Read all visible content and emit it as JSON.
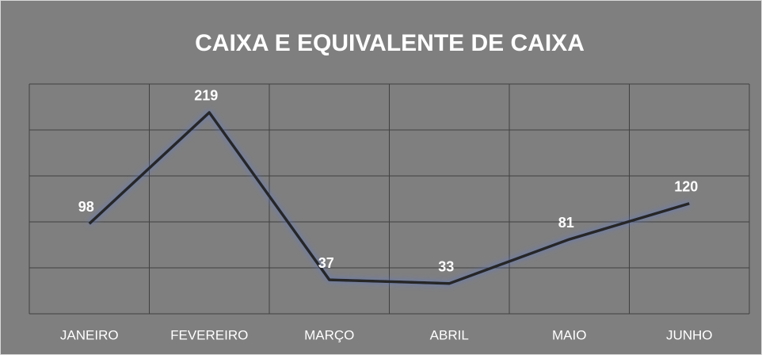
{
  "chart_data": {
    "type": "line",
    "title": "CAIXA E EQUIVALENTE DE CAIXA",
    "categories": [
      "JANEIRO",
      "FEVEREIRO",
      "MARÇO",
      "ABRIL",
      "MAIO",
      "JUNHO"
    ],
    "values": [
      98,
      219,
      37,
      33,
      81,
      120
    ],
    "color": "#262626",
    "background": "#7f7f7f",
    "ylim": [
      0,
      250
    ],
    "yticks": [
      0,
      50,
      100,
      150,
      200,
      250
    ],
    "grid": true
  }
}
